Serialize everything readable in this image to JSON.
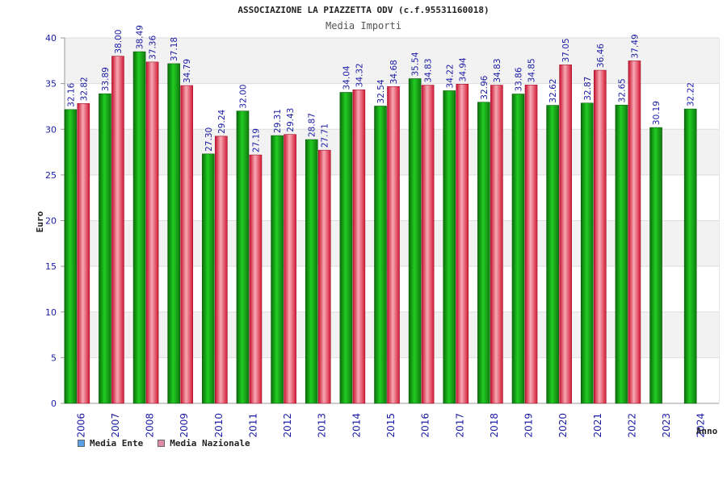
{
  "chart_data": {
    "type": "bar",
    "title": "ASSOCIAZIONE LA PIAZZETTA ODV (c.f.95531160018)",
    "subtitle": "Media Importi",
    "xlabel": "Anno",
    "ylabel": "Euro",
    "ylim": [
      0,
      40
    ],
    "yticks": [
      0,
      5,
      10,
      15,
      20,
      25,
      30,
      35,
      40
    ],
    "grid": true,
    "legend_position": "bottom-left",
    "categories": [
      "2006",
      "2007",
      "2008",
      "2009",
      "2010",
      "2011",
      "2012",
      "2013",
      "2014",
      "2015",
      "2016",
      "2017",
      "2018",
      "2019",
      "2020",
      "2021",
      "2022",
      "2023",
      "2024"
    ],
    "series": [
      {
        "name": "Media Ente",
        "legend_color": "#5aa0e6",
        "color": "#1faa1f",
        "values": [
          32.16,
          33.89,
          38.49,
          37.18,
          27.3,
          32.0,
          29.31,
          28.87,
          34.04,
          32.54,
          35.54,
          34.22,
          32.96,
          33.86,
          32.62,
          32.87,
          32.65,
          30.19,
          32.22
        ],
        "labels": [
          "32.16",
          "33.89",
          "38.49",
          "37.18",
          "27.30",
          "32.00",
          "29.31",
          "28.87",
          "34.04",
          "32.54",
          "35.54",
          "34.22",
          "32.96",
          "33.86",
          "32.62",
          "32.87",
          "32.65",
          "30.19",
          "32.22"
        ]
      },
      {
        "name": "Media Nazionale",
        "legend_color": "#e08aa8",
        "color": "#e01f3c",
        "values": [
          32.82,
          38.0,
          37.36,
          34.79,
          29.24,
          27.19,
          29.43,
          27.71,
          34.32,
          34.68,
          34.83,
          34.94,
          34.83,
          34.85,
          37.05,
          36.46,
          37.49,
          null,
          null
        ],
        "labels": [
          "32.82",
          "38.00",
          "37.36",
          "34.79",
          "29.24",
          "27.19",
          "29.43",
          "27.71",
          "34.32",
          "34.68",
          "34.83",
          "34.94",
          "34.83",
          "34.85",
          "37.05",
          "36.46",
          "37.49",
          "",
          ""
        ]
      }
    ]
  }
}
